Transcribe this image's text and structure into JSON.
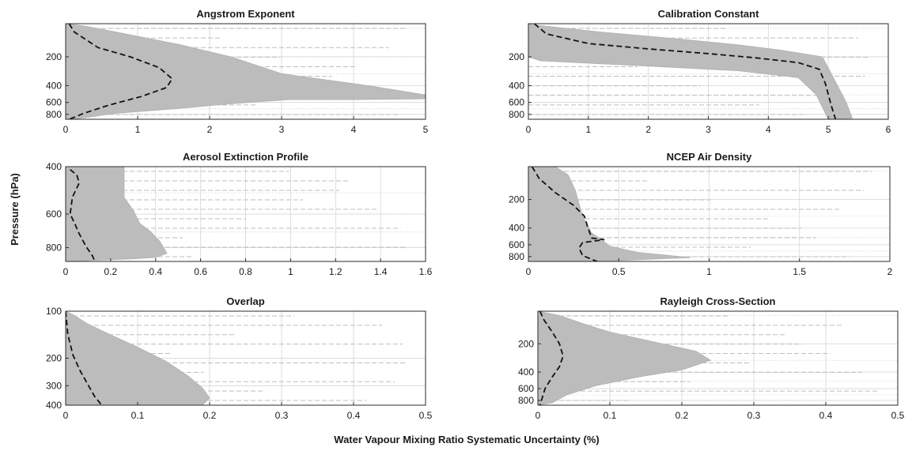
{
  "figure": {
    "xlabel": "Water Vapour Mixing Ratio Systematic Uncertainty (%)",
    "ylabel": "Pressure (hPa)"
  },
  "chart_data": [
    {
      "type": "line",
      "title": "Angstrom Exponent",
      "xlim": [
        0,
        5
      ],
      "ylim": [
        900,
        90
      ],
      "yscale": "log",
      "xticks": [
        0,
        1,
        2,
        3,
        4,
        5
      ],
      "yticks": [
        200,
        400,
        600,
        800
      ],
      "grid": true,
      "envelope_x": [
        0,
        0.25,
        0.7,
        1.6,
        2.3,
        3.0,
        4.2,
        5.0,
        5.0,
        4.0,
        3.1,
        2.3,
        1.5,
        0.7,
        0.2,
        0
      ],
      "envelope_y": [
        90,
        95,
        110,
        150,
        200,
        300,
        400,
        500,
        550,
        560,
        560,
        620,
        700,
        780,
        880,
        900
      ],
      "series": [
        {
          "style": "dashed-black",
          "x": [
            0.05,
            0.12,
            0.45,
            0.9,
            1.3,
            1.48,
            1.4,
            1.05,
            0.6,
            0.25,
            0.05
          ],
          "y": [
            90,
            110,
            160,
            200,
            260,
            340,
            420,
            520,
            640,
            780,
            900
          ]
        }
      ]
    },
    {
      "type": "line",
      "title": "Calibration Constant",
      "xlim": [
        0,
        6
      ],
      "ylim": [
        900,
        90
      ],
      "yscale": "log",
      "xticks": [
        0,
        1,
        2,
        3,
        4,
        5,
        6
      ],
      "yticks": [
        200,
        400,
        600,
        800
      ],
      "grid": true,
      "envelope_x": [
        0,
        0.05,
        1.2,
        2.5,
        3.5,
        4.2,
        4.9,
        5.05,
        5.3,
        5.4,
        5.0,
        4.8,
        4.5,
        3.5,
        2.0,
        0.2,
        0
      ],
      "envelope_y": [
        90,
        92,
        110,
        130,
        150,
        170,
        200,
        300,
        600,
        880,
        900,
        500,
        330,
        280,
        250,
        220,
        200
      ],
      "series": [
        {
          "style": "dashed-black",
          "x": [
            0.1,
            0.3,
            1.0,
            2.0,
            3.0,
            3.8,
            4.5,
            4.85,
            4.95,
            5.05,
            5.12
          ],
          "y": [
            90,
            115,
            145,
            165,
            185,
            205,
            230,
            270,
            380,
            650,
            900
          ]
        }
      ]
    },
    {
      "type": "line",
      "title": "Aerosol Extinction Profile",
      "xlim": [
        0,
        1.6
      ],
      "ylim": [
        900,
        400
      ],
      "yscale": "log",
      "xticks": [
        0,
        0.2,
        0.4,
        0.6,
        0.8,
        1,
        1.2,
        1.4,
        1.6
      ],
      "yticks": [
        400,
        600,
        800
      ],
      "grid": true,
      "envelope_x": [
        0,
        0.26,
        0.26,
        0.3,
        0.33,
        0.38,
        0.42,
        0.45,
        0.4,
        0.3,
        0
      ],
      "envelope_y": [
        400,
        400,
        520,
        580,
        650,
        700,
        760,
        840,
        870,
        880,
        900
      ],
      "series": [
        {
          "style": "dashed-black",
          "x": [
            0.02,
            0.05,
            0.06,
            0.03,
            0.02,
            0.04,
            0.06,
            0.09,
            0.12,
            0.13
          ],
          "y": [
            410,
            430,
            460,
            520,
            600,
            650,
            710,
            790,
            860,
            900
          ]
        }
      ]
    },
    {
      "type": "line",
      "title": "NCEP Air Density",
      "xlim": [
        0,
        2
      ],
      "ylim": [
        900,
        90
      ],
      "yscale": "log",
      "xticks": [
        0,
        0.5,
        1,
        1.5,
        2
      ],
      "yticks": [
        200,
        400,
        600,
        800
      ],
      "grid": true,
      "envelope_x": [
        0,
        0.15,
        0.22,
        0.26,
        0.28,
        0.3,
        0.35,
        0.4,
        0.45,
        0.6,
        0.9,
        0.5,
        0.25,
        0
      ],
      "envelope_y": [
        90,
        90,
        110,
        160,
        220,
        300,
        450,
        520,
        620,
        720,
        820,
        880,
        900,
        900
      ],
      "series": [
        {
          "style": "dashed-black",
          "x": [
            0.02,
            0.06,
            0.15,
            0.25,
            0.31,
            0.33,
            0.35,
            0.42,
            0.3,
            0.28,
            0.3,
            0.38
          ],
          "y": [
            90,
            120,
            170,
            230,
            300,
            400,
            510,
            530,
            570,
            650,
            780,
            900
          ]
        }
      ]
    },
    {
      "type": "line",
      "title": "Overlap",
      "xlim": [
        0,
        0.5
      ],
      "ylim": [
        400,
        100
      ],
      "yscale": "log",
      "xticks": [
        0,
        0.1,
        0.2,
        0.3,
        0.4,
        0.5
      ],
      "yticks": [
        100,
        200,
        300,
        400
      ],
      "grid": true,
      "envelope_x": [
        0,
        0.01,
        0.03,
        0.06,
        0.1,
        0.14,
        0.17,
        0.19,
        0.2,
        0.19,
        0
      ],
      "envelope_y": [
        100,
        105,
        120,
        140,
        170,
        210,
        260,
        310,
        360,
        400,
        400
      ],
      "series": [
        {
          "style": "dashed-black",
          "x": [
            0.0,
            0.003,
            0.01,
            0.02,
            0.03,
            0.04,
            0.05
          ],
          "y": [
            100,
            140,
            190,
            240,
            290,
            350,
            400
          ]
        }
      ]
    },
    {
      "type": "line",
      "title": "Rayleigh Cross-Section",
      "xlim": [
        0,
        0.5
      ],
      "ylim": [
        900,
        90
      ],
      "yscale": "log",
      "xticks": [
        0,
        0.1,
        0.2,
        0.3,
        0.4,
        0.5
      ],
      "yticks": [
        200,
        400,
        600,
        800
      ],
      "grid": true,
      "envelope_x": [
        0,
        0.03,
        0.06,
        0.1,
        0.16,
        0.22,
        0.24,
        0.2,
        0.14,
        0.08,
        0.04,
        0.02,
        0
      ],
      "envelope_y": [
        90,
        100,
        120,
        150,
        190,
        240,
        300,
        380,
        450,
        560,
        700,
        850,
        900
      ],
      "series": [
        {
          "style": "dashed-black",
          "x": [
            0.003,
            0.008,
            0.02,
            0.03,
            0.035,
            0.03,
            0.02,
            0.01,
            0.003
          ],
          "y": [
            90,
            110,
            150,
            200,
            270,
            350,
            450,
            600,
            900
          ]
        }
      ]
    }
  ]
}
